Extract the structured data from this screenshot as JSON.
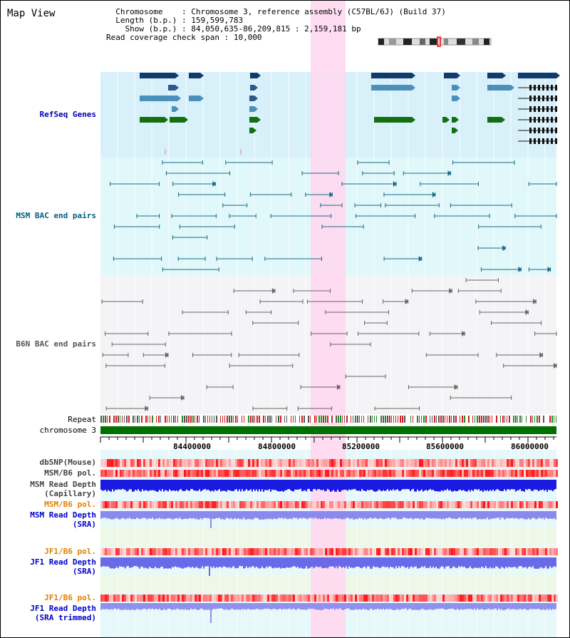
{
  "title": "Map View",
  "header": {
    "chromosome_key": "Chromosome",
    "chromosome_val": ": Chromosome 3, reference assembly (C57BL/6J) (Build 37)",
    "length_key": "Length (b.p.)",
    "length_val": ": 159,599,783",
    "show_key": "Show (b.p.)",
    "show_val": ": 84,050,635-86,209,815 : 2,159,181 bp",
    "span_key": "Read coverage check span",
    "span_val": ": 10,000"
  },
  "tracks": {
    "refseq": "RefSeq Genes",
    "msm_bac": "MSM BAC end pairs",
    "b6n_bac": "B6N BAC end pairs",
    "repeat": "Repeat",
    "chromosome": "chromosome 3",
    "dbsnp": "dbSNP(Mouse)",
    "msm_b6_pol": "MSM/B6 pol.",
    "msm_depth_cap_1": "MSM Read Depth",
    "msm_depth_cap_2": "(Capillary)",
    "msm_b6_pol2": "MSM/B6 pol.",
    "msm_depth_sra_1": "MSM Read Depth",
    "msm_depth_sra_2": "(SRA)",
    "jf1_b6_pol": "JF1/B6 pol.",
    "jf1_depth_sra_1": "JF1 Read Depth",
    "jf1_depth_sra_2": "(SRA)",
    "jf1_b6_pol2": "JF1/B6 pol.",
    "jf1_depth_trim_1": "JF1 Read Depth",
    "jf1_depth_trim_2": "(SRA trimmed)"
  },
  "axis": {
    "ticks": [
      "84400000",
      "84800000",
      "85200000",
      "85600000",
      "86000000"
    ]
  },
  "colors": {
    "refseq_label": "#0000aa",
    "msm_label": "#006080",
    "b6n_label": "#555555",
    "orange_label": "#e08000",
    "blue_label": "#0000cc",
    "highlight": "#ffd8f0",
    "refseq_bg": "#d8f0fa",
    "msm_bg": "#e0f8fa",
    "b6n_bg": "#f4f4f6",
    "chromosome_bar": "#007000"
  }
}
